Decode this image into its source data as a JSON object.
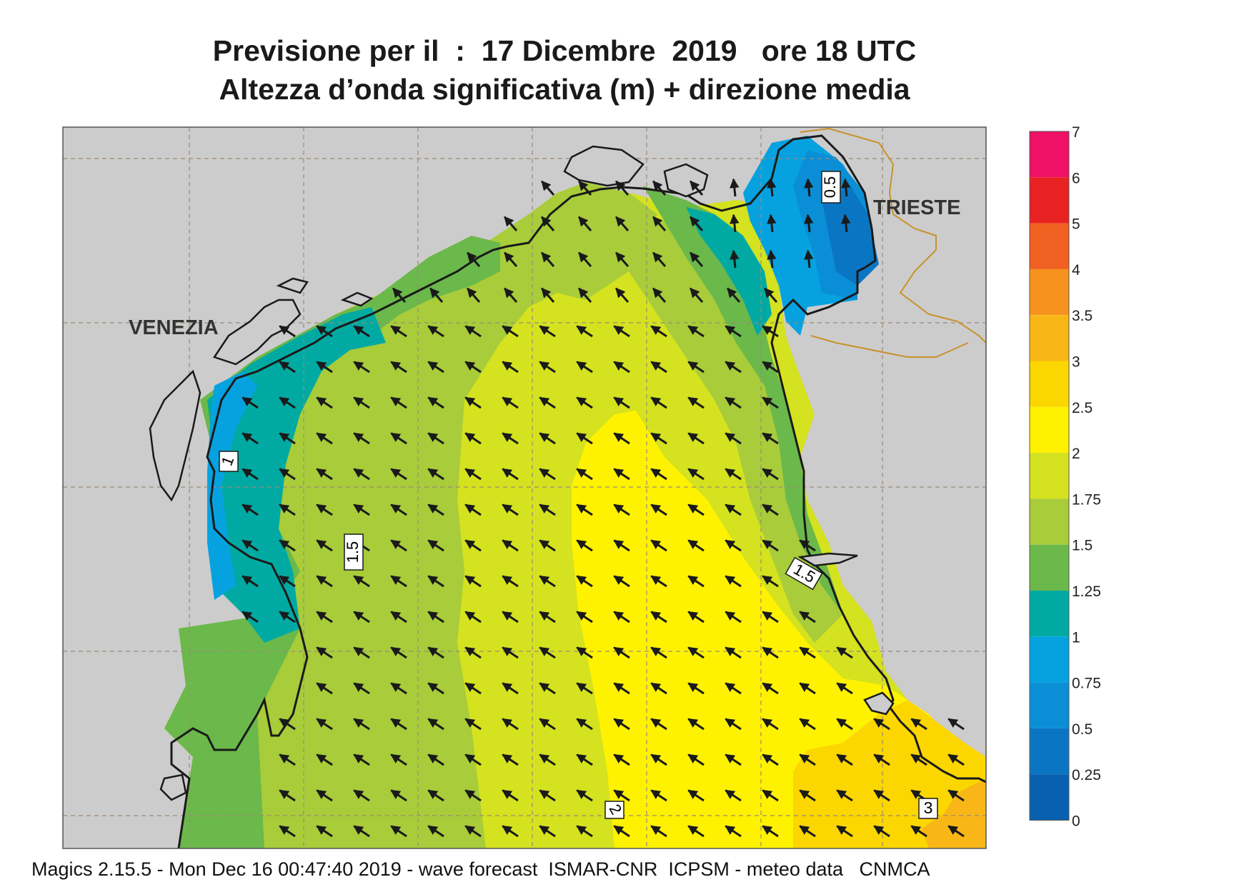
{
  "title": {
    "line1": "Previsione per il  :  17 Dicembre  2019   ore 18 UTC",
    "line2": "Altezza d’onda significativa (m) + direzione media"
  },
  "places": {
    "venezia": "VENEZIA",
    "trieste": "TRIESTE"
  },
  "contour_labels": [
    "0.5",
    "1",
    "1.5",
    "1.5",
    "2",
    "3"
  ],
  "legend": {
    "ticks": [
      "7",
      "6",
      "5",
      "4",
      "3.5",
      "3",
      "2.5",
      "2",
      "1.75",
      "1.5",
      "1.25",
      "1",
      "0.75",
      "0.5",
      "0.25",
      "0"
    ],
    "colors_top_to_bottom": [
      "#ee1166",
      "#e82222",
      "#f06020",
      "#f7921e",
      "#f9b717",
      "#fbd600",
      "#fff200",
      "#d4e21f",
      "#a8cc3a",
      "#6bb84b",
      "#00aaa2",
      "#06a2e0",
      "#0a8fd6",
      "#0a76c3",
      "#0861b0"
    ]
  },
  "colors": {
    "land": "#cccccc",
    "coast": "#1a1a1a",
    "border": "#c8922a",
    "grid": "#9c8a78",
    "arrow": "#1a1a1a"
  },
  "footer": "Magics 2.15.5 - Mon Dec 16 00:47:40 2019 - wave forecast  ISMAR-CNR  ICPSM - meteo data   CNMCA"
}
